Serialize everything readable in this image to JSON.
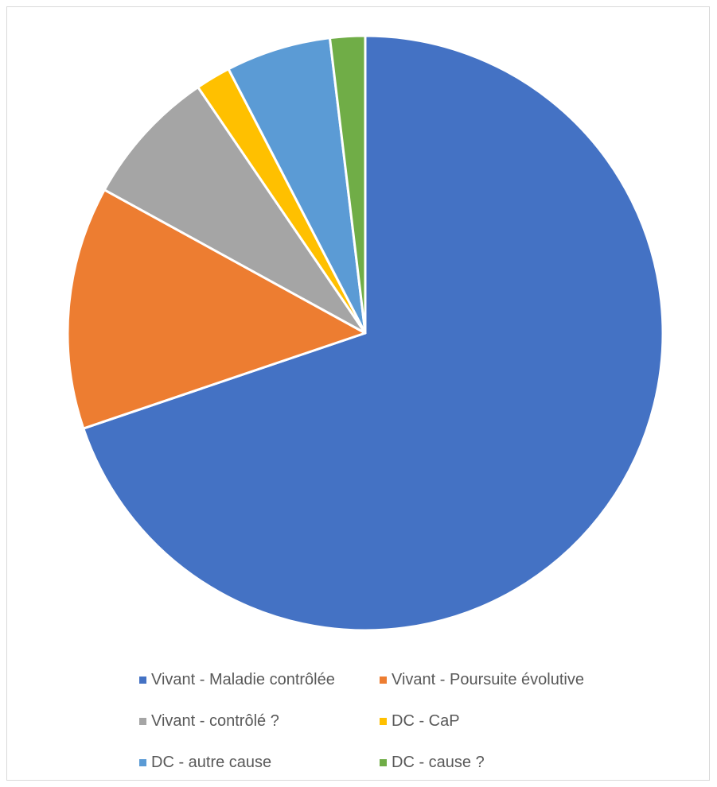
{
  "chart_data": {
    "type": "pie",
    "title": "",
    "start_angle_deg": 0,
    "direction": "clockwise",
    "legend_position": "bottom",
    "categories": [
      "Vivant - Maladie contrôlée",
      "Vivant - Poursuite évolutive",
      "Vivant - contrôlé ?",
      "DC - CaP",
      "DC - autre cause",
      "DC - cause ?"
    ],
    "values": [
      69.8,
      13.2,
      7.5,
      1.9,
      5.7,
      1.9
    ],
    "colors": [
      "#4472c4",
      "#ed7d31",
      "#a5a5a5",
      "#ffc000",
      "#5b9bd5",
      "#70ad47"
    ]
  }
}
